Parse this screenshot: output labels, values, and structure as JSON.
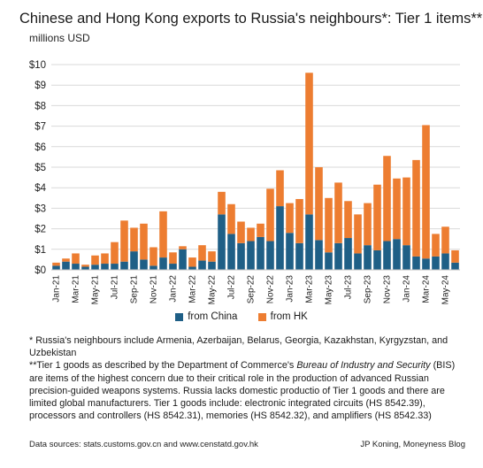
{
  "chart_data": {
    "type": "bar",
    "stacked": true,
    "title": "Chinese and Hong Kong exports to Russia's neighbours*: Tier 1 items**",
    "ylabel": "millions USD",
    "ylim": [
      0,
      10
    ],
    "yticks": [
      "$0",
      "$1",
      "$2",
      "$3",
      "$4",
      "$5",
      "$6",
      "$7",
      "$8",
      "$9",
      "$10"
    ],
    "grid": "horizontal",
    "legend_position": "bottom",
    "x_tick_labels": [
      "Jan-21",
      "Mar-21",
      "May-21",
      "Jul-21",
      "Sep-21",
      "Nov-21",
      "Jan-22",
      "Mar-22",
      "May-22",
      "Jul-22",
      "Sep-22",
      "Nov-22",
      "Jan-23",
      "Mar-23",
      "May-23",
      "Jul-23",
      "Sep-23",
      "Nov-23",
      "Jan-24",
      "Mar-24",
      "May-24"
    ],
    "categories": [
      "Jan-21",
      "Feb-21",
      "Mar-21",
      "Apr-21",
      "May-21",
      "Jun-21",
      "Jul-21",
      "Aug-21",
      "Sep-21",
      "Oct-21",
      "Nov-21",
      "Dec-21",
      "Jan-22",
      "Feb-22",
      "Mar-22",
      "Apr-22",
      "May-22",
      "Jun-22",
      "Jul-22",
      "Aug-22",
      "Sep-22",
      "Oct-22",
      "Nov-22",
      "Dec-22",
      "Jan-23",
      "Feb-23",
      "Mar-23",
      "Apr-23",
      "May-23",
      "Jun-23",
      "Jul-23",
      "Aug-23",
      "Sep-23",
      "Oct-23",
      "Nov-23",
      "Dec-23",
      "Jan-24",
      "Feb-24",
      "Mar-24",
      "Apr-24",
      "May-24",
      "Jun-24"
    ],
    "series": [
      {
        "name": "from China",
        "color": "#1f5f86",
        "values": [
          0.2,
          0.4,
          0.3,
          0.15,
          0.25,
          0.3,
          0.3,
          0.4,
          0.9,
          0.5,
          0.2,
          0.6,
          0.3,
          1.0,
          0.15,
          0.45,
          0.4,
          2.7,
          1.75,
          1.3,
          1.4,
          1.6,
          1.4,
          3.1,
          1.8,
          1.3,
          2.7,
          1.45,
          0.85,
          1.3,
          1.55,
          0.8,
          1.2,
          0.95,
          1.4,
          1.5,
          1.2,
          0.65,
          0.55,
          0.65,
          0.8,
          0.35
        ]
      },
      {
        "name": "from HK",
        "color": "#ed7d31",
        "values": [
          0.15,
          0.15,
          0.5,
          0.1,
          0.45,
          0.5,
          1.05,
          2.0,
          1.15,
          1.75,
          0.9,
          2.25,
          0.55,
          0.15,
          0.45,
          0.75,
          0.5,
          1.1,
          1.45,
          1.05,
          0.65,
          0.65,
          2.55,
          1.75,
          1.45,
          2.15,
          6.9,
          3.55,
          2.65,
          2.95,
          1.8,
          1.9,
          2.05,
          3.2,
          4.15,
          2.95,
          3.3,
          4.7,
          6.5,
          1.1,
          1.3,
          0.6
        ]
      }
    ]
  },
  "notes": {
    "note1": "* Russia's neighbours include Armenia, Azerbaijan, Belarus, Georgia, Kazakhstan, Kyrgyzstan, and Uzbekistan",
    "note2_pre": "**Tier 1 goods as described by the Department of Commerce's ",
    "note2_em": "Bureau of Industry and Security",
    "note2_post": " (BIS) are items of the highest concern due to their critical role in the production of advanced Russian precision-guided weapons systems.  Russia lacks  domestic productio of Tier 1 goods and there are limited global manufacturers. Tier 1 goods include: electronic integrated circuits (HS 8542.39), processors and controllers (HS 8542.31), memories (HS 8542.32), and amplifiers (HS 8542.33)"
  },
  "footer": {
    "sources": "Data sources: stats.customs.gov.cn  and www.censtatd.gov.hk",
    "credit": "JP Koning, Moneyness Blog"
  }
}
